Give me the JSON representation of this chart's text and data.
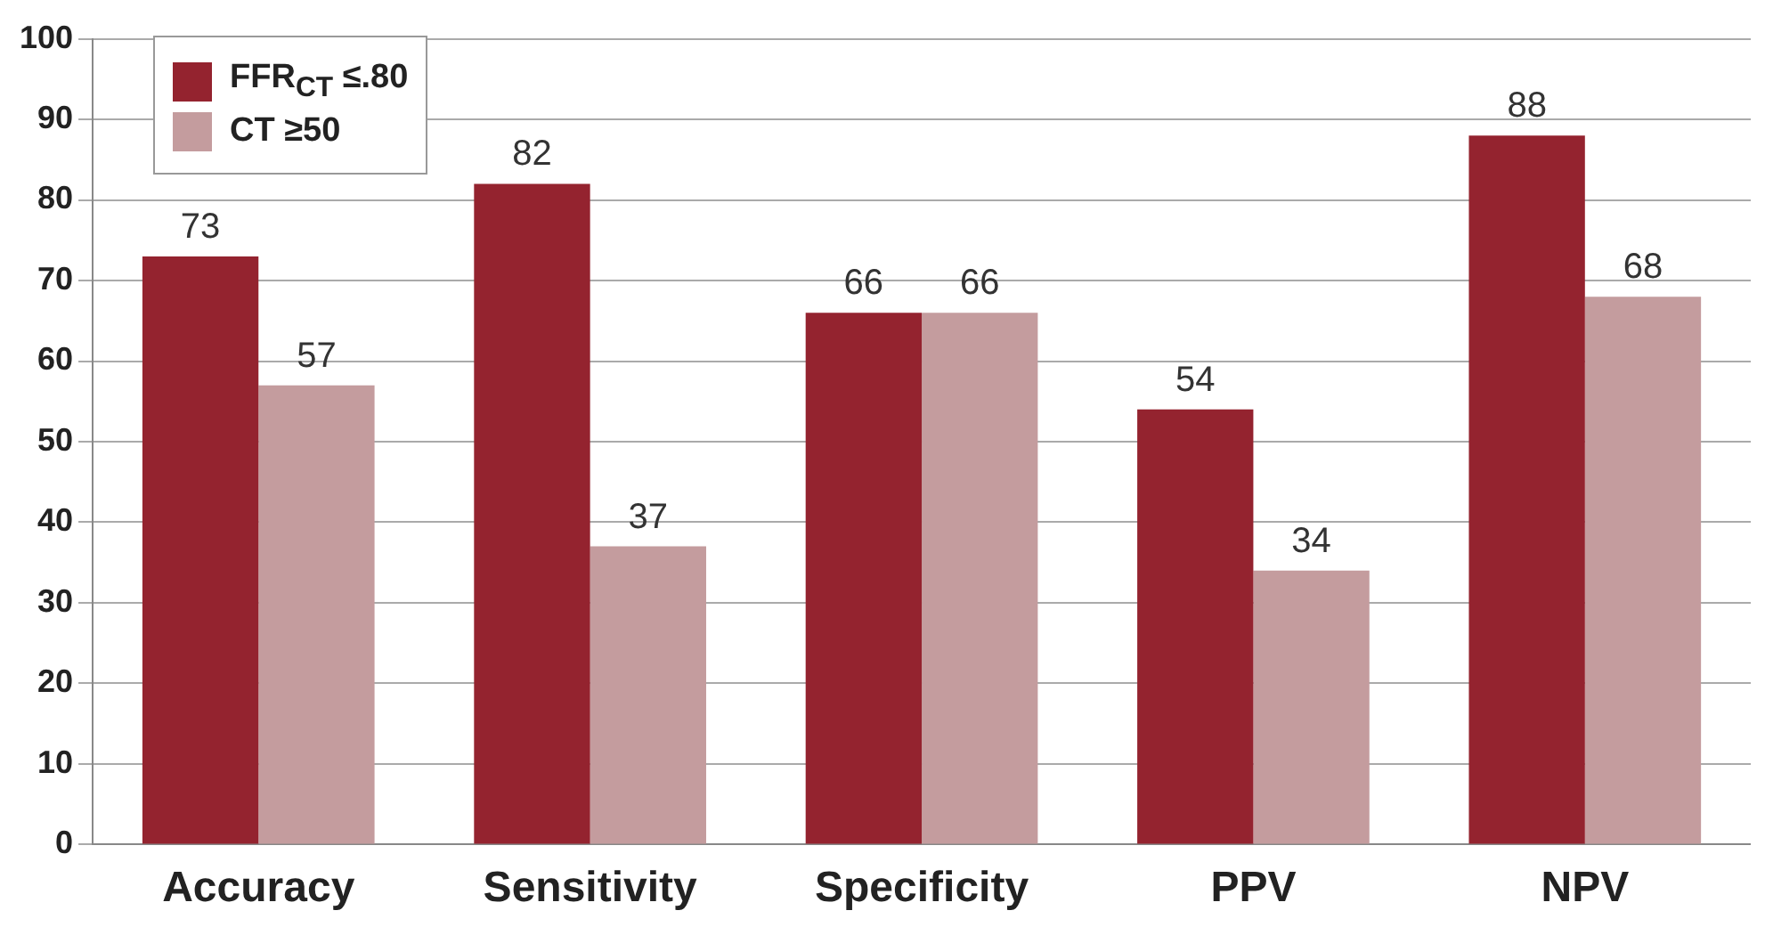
{
  "chart_data": {
    "type": "bar",
    "categories": [
      "Accuracy",
      "Sensitivity",
      "Specificity",
      "PPV",
      "NPV"
    ],
    "series": [
      {
        "name": "FFR$_{CT}$ ≤.80",
        "color": "#94232f",
        "values": [
          73,
          82,
          66,
          54,
          88
        ]
      },
      {
        "name": "CT ≥50",
        "color": "#c49c9e",
        "values": [
          57,
          37,
          66,
          34,
          68
        ]
      }
    ],
    "ylim": [
      0,
      100
    ],
    "yticks": [
      0,
      10,
      20,
      30,
      40,
      50,
      60,
      70,
      80,
      90,
      100
    ],
    "grid": "y",
    "legend": "top left",
    "data_labels": true
  }
}
